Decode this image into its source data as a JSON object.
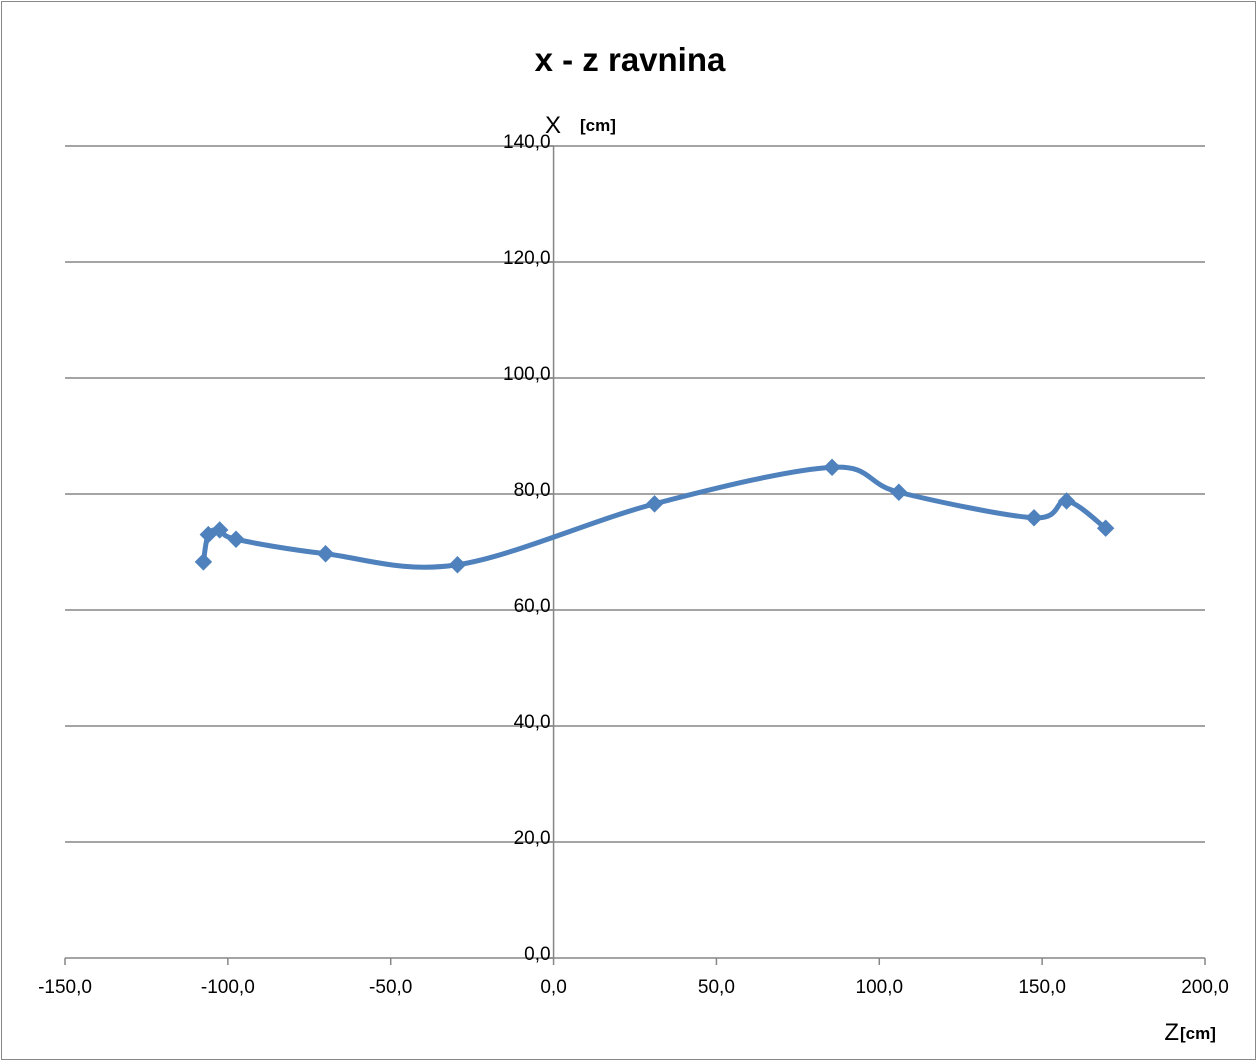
{
  "chart_data": {
    "type": "scatter",
    "title": "x - z ravnina",
    "xlabel": {
      "letter": "Z",
      "unit": "[cm]"
    },
    "ylabel": {
      "letter": "X",
      "unit": "[cm]"
    },
    "xlim": [
      -150,
      200
    ],
    "ylim": [
      0,
      140
    ],
    "xticks": [
      -150,
      -100,
      -50,
      0,
      50,
      100,
      150,
      200
    ],
    "yticks": [
      0,
      20,
      40,
      60,
      80,
      100,
      120,
      140
    ],
    "xtick_labels": [
      "-150,0",
      "-100,0",
      "-50,0",
      "0,0",
      "50,0",
      "100,0",
      "150,0",
      "200,0"
    ],
    "ytick_labels": [
      "0,0",
      "20,0",
      "40,0",
      "60,0",
      "80,0",
      "100,0",
      "120,0",
      "140,0"
    ],
    "grid": "horizontal",
    "line_smooth": true,
    "series": [
      {
        "color": "#4f81bd",
        "marker": "diamond",
        "points": [
          {
            "x": -107.5,
            "y": 68.3
          },
          {
            "x": -106.0,
            "y": 73.0
          },
          {
            "x": -102.5,
            "y": 73.8
          },
          {
            "x": -97.5,
            "y": 72.2
          },
          {
            "x": -70.0,
            "y": 69.7
          },
          {
            "x": -29.5,
            "y": 67.8
          },
          {
            "x": 31.0,
            "y": 78.3
          },
          {
            "x": 85.5,
            "y": 84.6
          },
          {
            "x": 106.0,
            "y": 80.3
          },
          {
            "x": 147.5,
            "y": 75.9
          },
          {
            "x": 157.5,
            "y": 78.8
          },
          {
            "x": 169.5,
            "y": 74.1
          }
        ]
      }
    ]
  }
}
